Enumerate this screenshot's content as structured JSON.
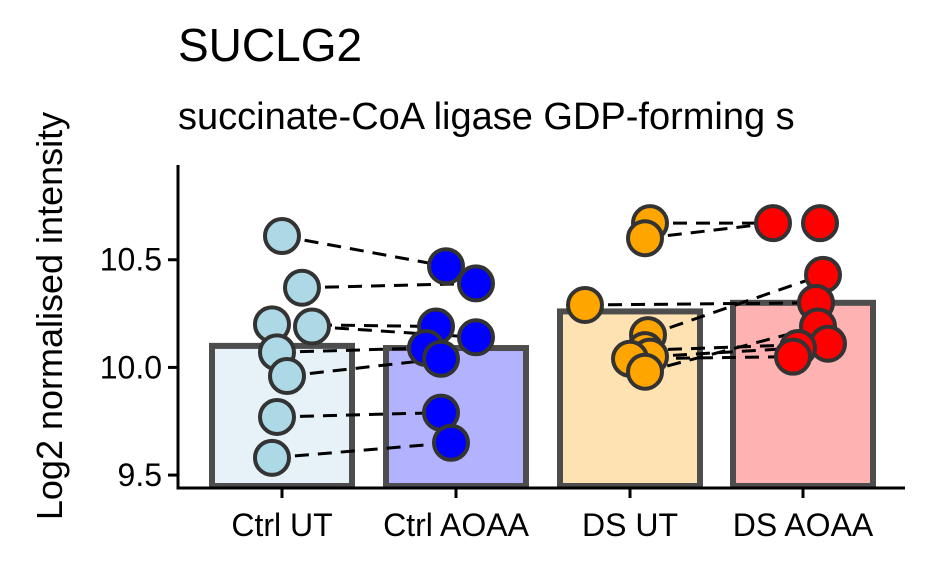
{
  "chart_data": {
    "type": "bar",
    "title": "SUCLG2",
    "subtitle": "succinate-CoA ligase GDP-forming s",
    "ylabel": "Log2 normalised intensity",
    "xlabel": "",
    "categories": [
      "Ctrl UT",
      "Ctrl AOAA",
      "DS UT",
      "DS AOAA"
    ],
    "bar_values": [
      10.1,
      10.09,
      10.26,
      10.3
    ],
    "bar_fill": [
      "#e6f1f8",
      "#b2b2ff",
      "#ffe2b2",
      "#ffb2b2"
    ],
    "point_fill": [
      "#add8e6",
      "#0000ff",
      "#ffa500",
      "#ff0000"
    ],
    "ylim": [
      9.44,
      10.94
    ],
    "yticks": [
      9.5,
      10.0,
      10.5
    ],
    "ytick_labels": [
      "9.5",
      "10.0",
      "10.5"
    ],
    "grid": false,
    "legend": "none",
    "points": [
      [
        10.61,
        10.37,
        10.2,
        10.19,
        10.07,
        9.96,
        9.77,
        9.58
      ],
      [
        10.47,
        10.39,
        10.19,
        10.14,
        10.09,
        10.04,
        9.79,
        9.65
      ],
      [
        10.67,
        10.6,
        10.29,
        10.15,
        10.08,
        10.05,
        10.04,
        9.98
      ],
      [
        10.67,
        10.67,
        10.43,
        10.3,
        10.19,
        10.11,
        10.09,
        10.05
      ]
    ],
    "pairs": [
      {
        "from": [
          0,
          10.61
        ],
        "to": [
          1,
          10.47
        ]
      },
      {
        "from": [
          0,
          10.37
        ],
        "to": [
          1,
          10.39
        ]
      },
      {
        "from": [
          0,
          10.2
        ],
        "to": [
          1,
          10.19
        ]
      },
      {
        "from": [
          0,
          10.19
        ],
        "to": [
          1,
          10.14
        ]
      },
      {
        "from": [
          0,
          10.07
        ],
        "to": [
          1,
          10.09
        ]
      },
      {
        "from": [
          0,
          9.96
        ],
        "to": [
          1,
          10.04
        ]
      },
      {
        "from": [
          0,
          9.77
        ],
        "to": [
          1,
          9.79
        ]
      },
      {
        "from": [
          0,
          9.58
        ],
        "to": [
          1,
          9.65
        ]
      },
      {
        "from": [
          2,
          10.67
        ],
        "to": [
          3,
          10.67
        ]
      },
      {
        "from": [
          2,
          10.6
        ],
        "to": [
          3,
          10.67
        ]
      },
      {
        "from": [
          2,
          10.29
        ],
        "to": [
          3,
          10.3
        ]
      },
      {
        "from": [
          2,
          10.15
        ],
        "to": [
          3,
          10.43
        ]
      },
      {
        "from": [
          2,
          10.08
        ],
        "to": [
          3,
          10.11
        ]
      },
      {
        "from": [
          2,
          10.05
        ],
        "to": [
          3,
          10.09
        ]
      },
      {
        "from": [
          2,
          10.04
        ],
        "to": [
          3,
          10.05
        ]
      },
      {
        "from": [
          2,
          9.98
        ],
        "to": [
          3,
          10.19
        ]
      }
    ]
  }
}
